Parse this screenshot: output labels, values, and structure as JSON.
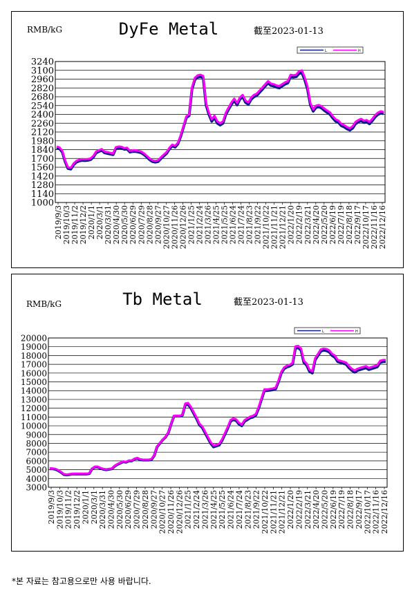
{
  "chart_data": [
    {
      "type": "line",
      "title": "DyFe Metal",
      "subtitle": "截至2023-01-13",
      "ylabel": "RMB/kG",
      "legend": [
        "L",
        "H"
      ],
      "legend_placement": "top-right",
      "grid": true,
      "ylim": [
        1000,
        3240
      ],
      "yticks": [
        1000,
        1140,
        1280,
        1420,
        1560,
        1700,
        1840,
        1980,
        2120,
        2260,
        2400,
        2540,
        2680,
        2820,
        2960,
        3100,
        3240
      ],
      "xticks": [
        "2019/9/3",
        "2019/10/3",
        "2019/11/2",
        "2019/12/2",
        "2020/1/1",
        "2020/3/1",
        "2020/3/31",
        "2020/4/30",
        "2020/5/30",
        "2020/6/29",
        "2020/7/29",
        "2020/8/28",
        "2020/9/27",
        "2020/10/27",
        "2020/11/26",
        "2020/12/26",
        "2021/1/25",
        "2021/2/24",
        "2021/3/26",
        "2021/4/25",
        "2021/5/25",
        "2021/6/24",
        "2021/7/24",
        "2021/8/23",
        "2021/9/22",
        "2021/10/22",
        "2021/11/21",
        "2021/12/21",
        "2022/1/20",
        "2022/2/19",
        "2022/3/21",
        "2022/4/20",
        "2022/5/20",
        "2022/6/19",
        "2022/7/19",
        "2022/8/18",
        "2022/9/17",
        "2022/10/17",
        "2022/11/16",
        "2022/12/16"
      ],
      "series": [
        {
          "name": "L",
          "color": "#0d1b8a",
          "values": [
            1870,
            1855,
            1800,
            1650,
            1540,
            1530,
            1600,
            1640,
            1660,
            1670,
            1665,
            1670,
            1680,
            1720,
            1790,
            1810,
            1830,
            1790,
            1780,
            1770,
            1760,
            1860,
            1870,
            1865,
            1845,
            1850,
            1800,
            1810,
            1810,
            1800,
            1790,
            1760,
            1720,
            1680,
            1650,
            1640,
            1650,
            1700,
            1740,
            1780,
            1850,
            1900,
            1880,
            1930,
            2050,
            2200,
            2350,
            2380,
            2800,
            2950,
            2990,
            3000,
            2980,
            2550,
            2400,
            2290,
            2350,
            2260,
            2230,
            2260,
            2400,
            2480,
            2560,
            2620,
            2550,
            2640,
            2680,
            2590,
            2560,
            2640,
            2680,
            2700,
            2750,
            2800,
            2850,
            2900,
            2860,
            2850,
            2830,
            2820,
            2850,
            2880,
            2900,
            3000,
            2990,
            3000,
            3050,
            3060,
            2950,
            2800,
            2550,
            2450,
            2510,
            2520,
            2500,
            2460,
            2430,
            2400,
            2340,
            2290,
            2270,
            2220,
            2200,
            2170,
            2150,
            2180,
            2250,
            2280,
            2300,
            2270,
            2280,
            2250,
            2300,
            2360,
            2400,
            2420,
            2410
          ]
        },
        {
          "name": "H",
          "color": "#ff00ff",
          "values": [
            1890,
            1875,
            1820,
            1670,
            1560,
            1550,
            1620,
            1660,
            1680,
            1690,
            1685,
            1690,
            1700,
            1740,
            1810,
            1830,
            1850,
            1810,
            1800,
            1790,
            1780,
            1880,
            1890,
            1885,
            1865,
            1870,
            1820,
            1830,
            1830,
            1820,
            1810,
            1780,
            1740,
            1700,
            1670,
            1660,
            1670,
            1720,
            1760,
            1800,
            1870,
            1920,
            1900,
            1950,
            2070,
            2220,
            2370,
            2400,
            2830,
            2980,
            3020,
            3030,
            3010,
            2580,
            2430,
            2320,
            2380,
            2290,
            2260,
            2290,
            2430,
            2510,
            2590,
            2650,
            2580,
            2670,
            2710,
            2620,
            2590,
            2670,
            2710,
            2730,
            2780,
            2830,
            2880,
            2930,
            2890,
            2880,
            2860,
            2850,
            2880,
            2910,
            2930,
            3030,
            3020,
            3030,
            3090,
            3100,
            2990,
            2840,
            2580,
            2480,
            2540,
            2550,
            2530,
            2490,
            2460,
            2430,
            2370,
            2320,
            2300,
            2250,
            2230,
            2200,
            2180,
            2210,
            2280,
            2310,
            2330,
            2300,
            2310,
            2280,
            2330,
            2390,
            2430,
            2450,
            2440
          ]
        }
      ]
    },
    {
      "type": "line",
      "title": "Tb Metal",
      "subtitle": "截至2023-01-13",
      "ylabel": "RMB/kG",
      "legend": [
        "L",
        "H"
      ],
      "legend_placement": "top-right",
      "grid": true,
      "ylim": [
        3000,
        20000
      ],
      "yticks": [
        3000,
        4000,
        5000,
        6000,
        7000,
        8000,
        9000,
        10000,
        11000,
        12000,
        13000,
        14000,
        15000,
        16000,
        17000,
        18000,
        19000,
        20000
      ],
      "xticks": [
        "2019/9/3",
        "2019/10/3",
        "2019/11/2",
        "2019/12/2",
        "2020/1/1",
        "2020/3/1",
        "2020/3/31",
        "2020/4/30",
        "2020/5/30",
        "2020/6/29",
        "2020/7/29",
        "2020/8/28",
        "2020/9/27",
        "2020/10/27",
        "2020/11/26",
        "2020/12/26",
        "2021/1/25",
        "2021/2/24",
        "2021/3/26",
        "2021/4/25",
        "2021/5/25",
        "2021/6/24",
        "2021/7/24",
        "2021/8/23",
        "2021/9/22",
        "2021/10/22",
        "2021/11/21",
        "2021/12/21",
        "2022/1/20",
        "2022/2/19",
        "2022/3/21",
        "2022/4/20",
        "2022/5/20",
        "2022/6/19",
        "2022/7/19",
        "2022/8/18",
        "2022/9/17",
        "2022/10/17",
        "2022/11/16",
        "2022/12/16"
      ],
      "series": [
        {
          "name": "L",
          "color": "#0d1b8a",
          "values": [
            5100,
            5100,
            5050,
            4900,
            4700,
            4450,
            4400,
            4450,
            4500,
            4500,
            4500,
            4500,
            4500,
            4500,
            4550,
            5100,
            5300,
            5300,
            5150,
            5050,
            5000,
            5050,
            5100,
            5400,
            5600,
            5750,
            5900,
            5850,
            6000,
            6000,
            6200,
            6300,
            6150,
            6100,
            6100,
            6100,
            6150,
            6600,
            7600,
            8000,
            8400,
            8700,
            9200,
            10200,
            11100,
            11100,
            11100,
            11200,
            12400,
            12450,
            12000,
            11400,
            10800,
            10100,
            9800,
            9200,
            8600,
            8000,
            7600,
            7700,
            7800,
            8300,
            9000,
            9700,
            10500,
            10700,
            10600,
            10200,
            10000,
            10500,
            10700,
            10900,
            11000,
            11200,
            12000,
            13000,
            14000,
            14000,
            14050,
            14100,
            14200,
            15000,
            16000,
            16500,
            16700,
            16800,
            17000,
            18800,
            18900,
            18600,
            17200,
            16900,
            16200,
            16000,
            17500,
            18000,
            18500,
            18600,
            18550,
            18400,
            18000,
            17800,
            17300,
            17200,
            17100,
            17000,
            16600,
            16300,
            16100,
            16300,
            16400,
            16500,
            16600,
            16400,
            16500,
            16600,
            16700,
            17200,
            17300,
            17300
          ]
        },
        {
          "name": "H",
          "color": "#ff00ff",
          "values": [
            5150,
            5150,
            5100,
            4950,
            4750,
            4500,
            4450,
            4500,
            4550,
            4550,
            4550,
            4550,
            4550,
            4550,
            4600,
            5150,
            5350,
            5350,
            5200,
            5100,
            5050,
            5100,
            5150,
            5450,
            5650,
            5800,
            5950,
            5900,
            6050,
            6050,
            6250,
            6350,
            6200,
            6150,
            6150,
            6150,
            6200,
            6650,
            7650,
            8050,
            8450,
            8750,
            9250,
            10250,
            11150,
            11150,
            11150,
            11250,
            12550,
            12600,
            12150,
            11550,
            10950,
            10250,
            9950,
            9350,
            8750,
            8150,
            7750,
            7850,
            7950,
            8450,
            9150,
            9850,
            10650,
            10850,
            10750,
            10350,
            10150,
            10650,
            10850,
            11050,
            11150,
            11350,
            12150,
            13150,
            14150,
            14150,
            14200,
            14250,
            14350,
            15150,
            16150,
            16650,
            16850,
            16950,
            17150,
            19050,
            19100,
            18800,
            17400,
            17100,
            16400,
            16200,
            17700,
            18200,
            18700,
            18800,
            18750,
            18600,
            18200,
            18000,
            17500,
            17400,
            17300,
            17200,
            16800,
            16500,
            16300,
            16500,
            16600,
            16700,
            16800,
            16600,
            16700,
            16800,
            16900,
            17400,
            17500,
            17500
          ]
        }
      ]
    }
  ],
  "footnote": "*본 자료는 참고용으로만 사용 바랍니다."
}
